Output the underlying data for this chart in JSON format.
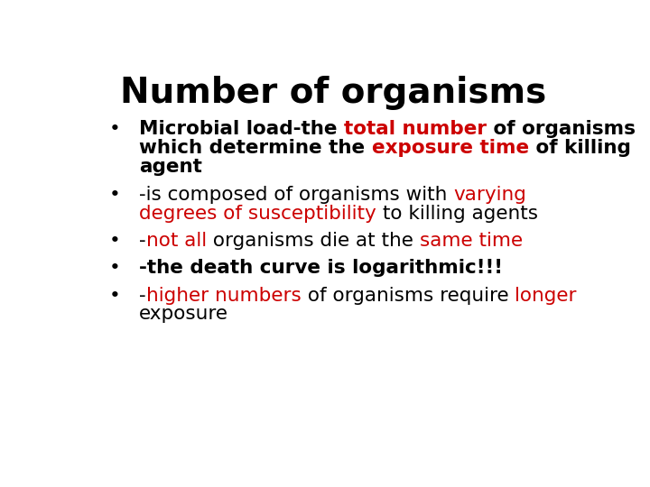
{
  "title": "Number of organisms",
  "title_fontsize": 28,
  "title_color": "#000000",
  "background_color": "#ffffff",
  "bullet_color": "#000000",
  "bullet_fontsize": 15.5,
  "bullets": [
    {
      "lines": [
        [
          {
            "text": "Microbial load-the ",
            "color": "#000000",
            "bold": true
          },
          {
            "text": "total number",
            "color": "#cc0000",
            "bold": true
          },
          {
            "text": " of organisms",
            "color": "#000000",
            "bold": true
          }
        ],
        [
          {
            "text": "which determine the ",
            "color": "#000000",
            "bold": true
          },
          {
            "text": "exposure time",
            "color": "#cc0000",
            "bold": true
          },
          {
            "text": " of killing",
            "color": "#000000",
            "bold": true
          }
        ],
        [
          {
            "text": "agent",
            "color": "#000000",
            "bold": true
          }
        ]
      ]
    },
    {
      "lines": [
        [
          {
            "text": "-is composed of organisms with ",
            "color": "#000000",
            "bold": false
          },
          {
            "text": "varying",
            "color": "#cc0000",
            "bold": false
          }
        ],
        [
          {
            "text": "degrees of susceptibility",
            "color": "#cc0000",
            "bold": false
          },
          {
            "text": " to killing agents",
            "color": "#000000",
            "bold": false
          }
        ]
      ]
    },
    {
      "lines": [
        [
          {
            "text": "-",
            "color": "#000000",
            "bold": false
          },
          {
            "text": "not all",
            "color": "#cc0000",
            "bold": false
          },
          {
            "text": " organisms die at the ",
            "color": "#000000",
            "bold": false
          },
          {
            "text": "same time",
            "color": "#cc0000",
            "bold": false
          }
        ]
      ]
    },
    {
      "lines": [
        [
          {
            "text": "-the death curve is logarithmic!!!",
            "color": "#000000",
            "bold": true
          }
        ]
      ]
    },
    {
      "lines": [
        [
          {
            "text": "-",
            "color": "#000000",
            "bold": false
          },
          {
            "text": "higher numbers",
            "color": "#cc0000",
            "bold": false
          },
          {
            "text": " of organisms require ",
            "color": "#000000",
            "bold": false
          },
          {
            "text": "longer",
            "color": "#cc0000",
            "bold": false
          }
        ],
        [
          {
            "text": "exposure",
            "color": "#000000",
            "bold": false
          }
        ]
      ]
    }
  ]
}
